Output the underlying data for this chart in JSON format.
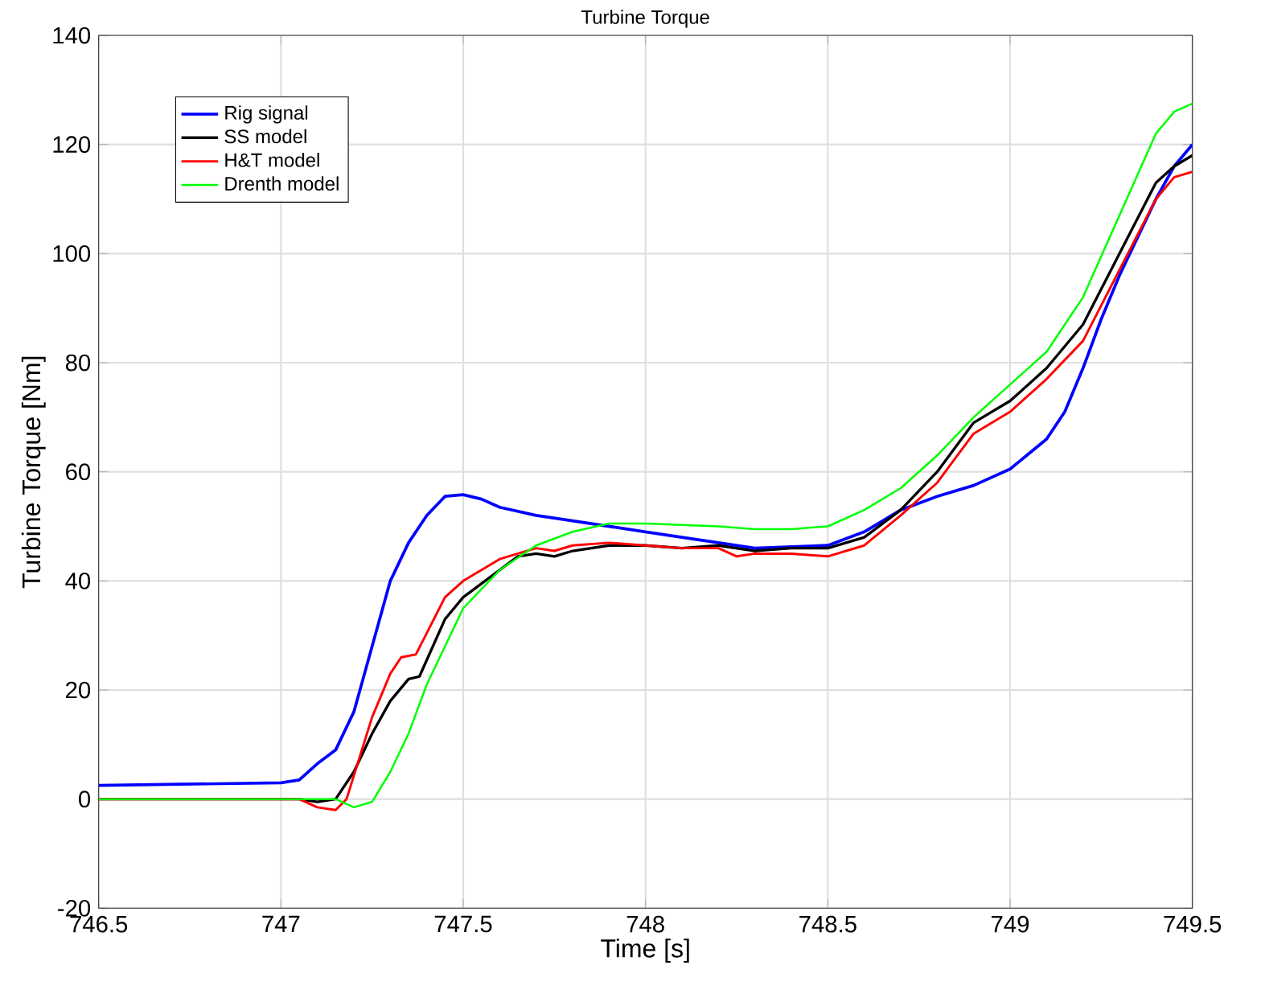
{
  "chart_data": {
    "type": "line",
    "title": "Turbine Torque",
    "xlabel": "Time [s]",
    "ylabel": "Turbine Torque [Nm]",
    "xlim": [
      746.5,
      749.5
    ],
    "ylim": [
      -20,
      140
    ],
    "xticks": [
      746.5,
      747,
      747.5,
      748,
      748.5,
      749,
      749.5
    ],
    "yticks": [
      -20,
      0,
      20,
      40,
      60,
      80,
      100,
      120,
      140
    ],
    "grid": true,
    "legend": "top left",
    "line_style": "solid",
    "marker": "none",
    "series": [
      {
        "name": "Rig signal",
        "color": "#0000ff",
        "x": [
          746.5,
          747.0,
          747.05,
          747.1,
          747.15,
          747.2,
          747.25,
          747.3,
          747.35,
          747.4,
          747.45,
          747.5,
          747.55,
          747.6,
          747.7,
          747.8,
          748.0,
          748.2,
          748.3,
          748.5,
          748.6,
          748.7,
          748.8,
          748.9,
          749.0,
          749.1,
          749.15,
          749.2,
          749.25,
          749.3,
          749.35,
          749.4,
          749.45,
          749.5
        ],
        "values": [
          2.5,
          3,
          3.5,
          6.5,
          9,
          16,
          28,
          40,
          47,
          52,
          55.5,
          55.8,
          55,
          53.5,
          52,
          51,
          49,
          47,
          46,
          46.5,
          49,
          53,
          55.5,
          57.5,
          60.5,
          66,
          71,
          79,
          88,
          96,
          103,
          110,
          116,
          120
        ]
      },
      {
        "name": "SS model",
        "color": "#000000",
        "x": [
          746.5,
          747.05,
          747.1,
          747.15,
          747.2,
          747.25,
          747.3,
          747.35,
          747.38,
          747.45,
          747.5,
          747.6,
          747.65,
          747.7,
          747.75,
          747.8,
          747.9,
          748.0,
          748.1,
          748.2,
          748.3,
          748.4,
          748.5,
          748.6,
          748.7,
          748.8,
          748.9,
          749.0,
          749.1,
          749.2,
          749.3,
          749.4,
          749.45,
          749.5
        ],
        "values": [
          0,
          0,
          -0.5,
          0,
          5,
          12,
          18,
          22,
          22.5,
          33,
          37,
          42,
          44.5,
          45,
          44.5,
          45.5,
          46.5,
          46.5,
          46,
          46.5,
          45.5,
          46,
          46,
          48,
          53,
          60,
          69,
          73,
          79,
          87,
          100,
          113,
          116,
          118
        ]
      },
      {
        "name": "H&T model",
        "color": "#ff0000",
        "x": [
          746.5,
          747.05,
          747.1,
          747.15,
          747.18,
          747.25,
          747.3,
          747.33,
          747.37,
          747.45,
          747.5,
          747.6,
          747.7,
          747.75,
          747.8,
          747.9,
          748.0,
          748.1,
          748.2,
          748.25,
          748.3,
          748.4,
          748.5,
          748.6,
          748.7,
          748.8,
          748.9,
          749.0,
          749.1,
          749.2,
          749.3,
          749.4,
          749.45,
          749.5
        ],
        "values": [
          0,
          0,
          -1.5,
          -2,
          0,
          15,
          23,
          26,
          26.5,
          37,
          40,
          44,
          46,
          45.5,
          46.5,
          47,
          46.5,
          46,
          46,
          44.5,
          45,
          45,
          44.5,
          46.5,
          52,
          58,
          67,
          71,
          77,
          84,
          97,
          110,
          114,
          115
        ]
      },
      {
        "name": "Drenth model",
        "color": "#00ff00",
        "x": [
          746.5,
          747.15,
          747.2,
          747.25,
          747.3,
          747.35,
          747.4,
          747.45,
          747.5,
          747.6,
          747.7,
          747.8,
          747.9,
          748.0,
          748.2,
          748.3,
          748.4,
          748.5,
          748.6,
          748.7,
          748.8,
          748.9,
          749.0,
          749.1,
          749.2,
          749.3,
          749.4,
          749.45,
          749.5
        ],
        "values": [
          0,
          0,
          -1.5,
          -0.5,
          5,
          12,
          21,
          28,
          35,
          42,
          46.5,
          49,
          50.5,
          50.5,
          50,
          49.5,
          49.5,
          50,
          53,
          57,
          63,
          70,
          76,
          82,
          92,
          107,
          122,
          126,
          127.5
        ]
      }
    ]
  }
}
